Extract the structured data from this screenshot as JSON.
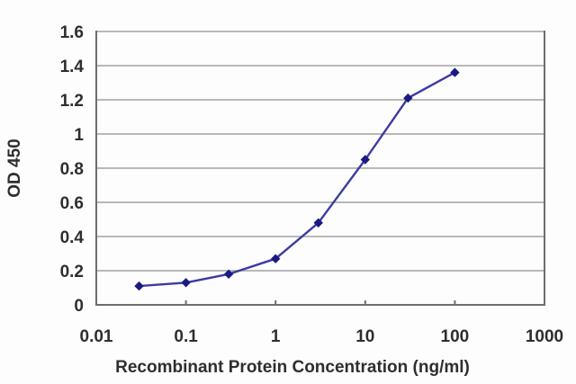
{
  "chart_data": {
    "type": "line",
    "title": "",
    "xlabel": "Recombinant Protein Concentration (ng/ml)",
    "ylabel": "OD 450",
    "x_scale": "log",
    "y_scale": "linear",
    "xlim": [
      0.01,
      1000
    ],
    "ylim": [
      0,
      1.6
    ],
    "x_ticks": [
      0.01,
      0.1,
      1,
      10,
      100,
      1000
    ],
    "x_tick_labels": [
      "0.01",
      "0.1",
      "1",
      "10",
      "100",
      "1000"
    ],
    "y_ticks": [
      0,
      0.2,
      0.4,
      0.6,
      0.8,
      1,
      1.2,
      1.4,
      1.6
    ],
    "y_tick_labels": [
      "0",
      "0.2",
      "0.4",
      "0.6",
      "0.8",
      "1",
      "1.2",
      "1.4",
      "1.6"
    ],
    "grid": true,
    "legend_position": "none",
    "series": [
      {
        "marker": "diamond",
        "x": [
          0.03,
          0.1,
          0.3,
          1,
          3,
          10,
          30,
          100
        ],
        "y": [
          0.11,
          0.13,
          0.18,
          0.27,
          0.48,
          0.85,
          1.21,
          1.36
        ]
      }
    ]
  },
  "colors": {
    "background": "#fdfdfd",
    "axis_frame": "#6e6e6e",
    "gridline": "#a2a2a2",
    "series_line": "#3b3ba3",
    "series_marker": "#1a1a85",
    "text": "#2e2e2e"
  }
}
